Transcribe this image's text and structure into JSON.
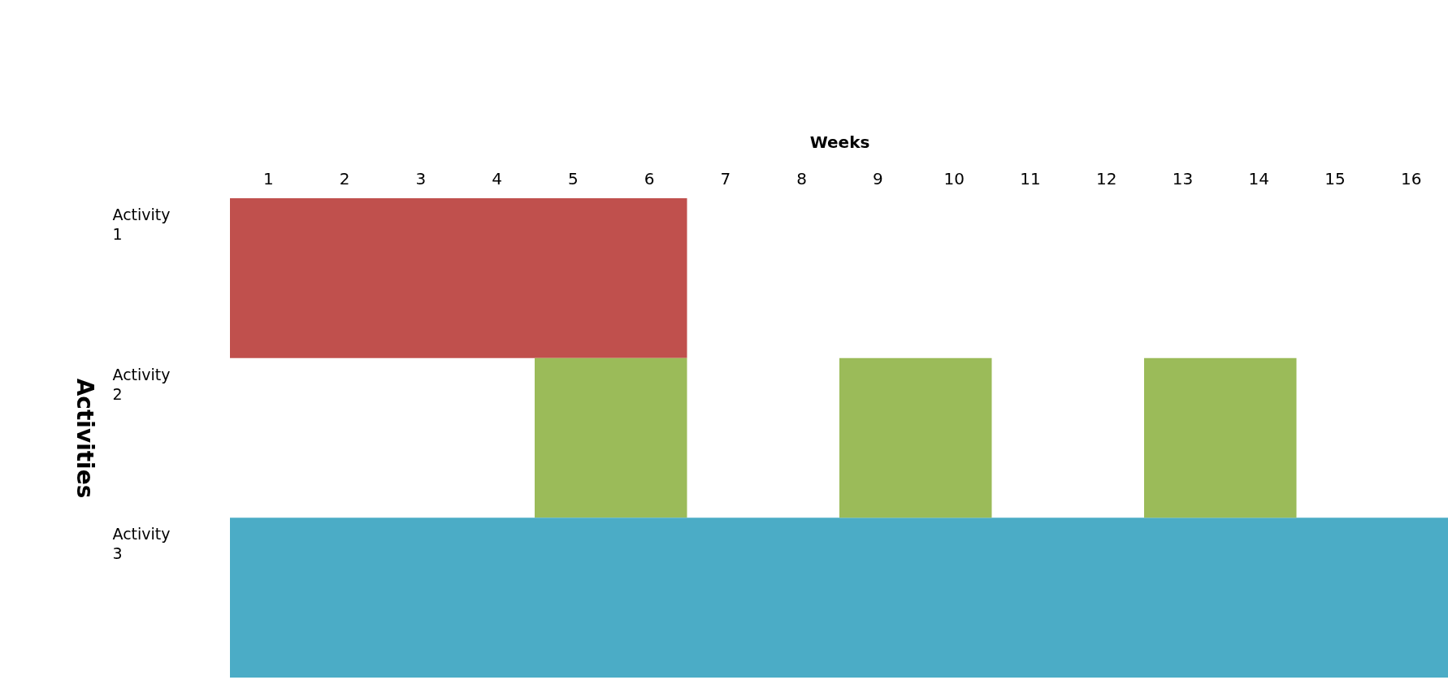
{
  "chart_data": {
    "type": "bar",
    "orientation": "horizontal",
    "xlabel": "Weeks",
    "ylabel": "Activities",
    "categories": [
      "Activity 1",
      "Activity 2",
      "Activity 3"
    ],
    "xlim": [
      0.5,
      16.5
    ],
    "xticks": [
      1,
      2,
      3,
      4,
      5,
      6,
      7,
      8,
      9,
      10,
      11,
      12,
      13,
      14,
      15,
      16
    ],
    "series": [
      {
        "values": [
          6,
          2,
          16
        ],
        "base": [
          0.5,
          4.5,
          0.5
        ],
        "colors": [
          "#c0504d",
          "#9bbb59",
          "#4bacc6"
        ]
      },
      {
        "values": [
          null,
          2,
          null
        ],
        "base": [
          null,
          8.5,
          null
        ],
        "color": "#9bbb59"
      },
      {
        "values": [
          null,
          2,
          null
        ],
        "base": [
          null,
          12.5,
          null
        ],
        "color": "#9bbb59"
      }
    ]
  }
}
